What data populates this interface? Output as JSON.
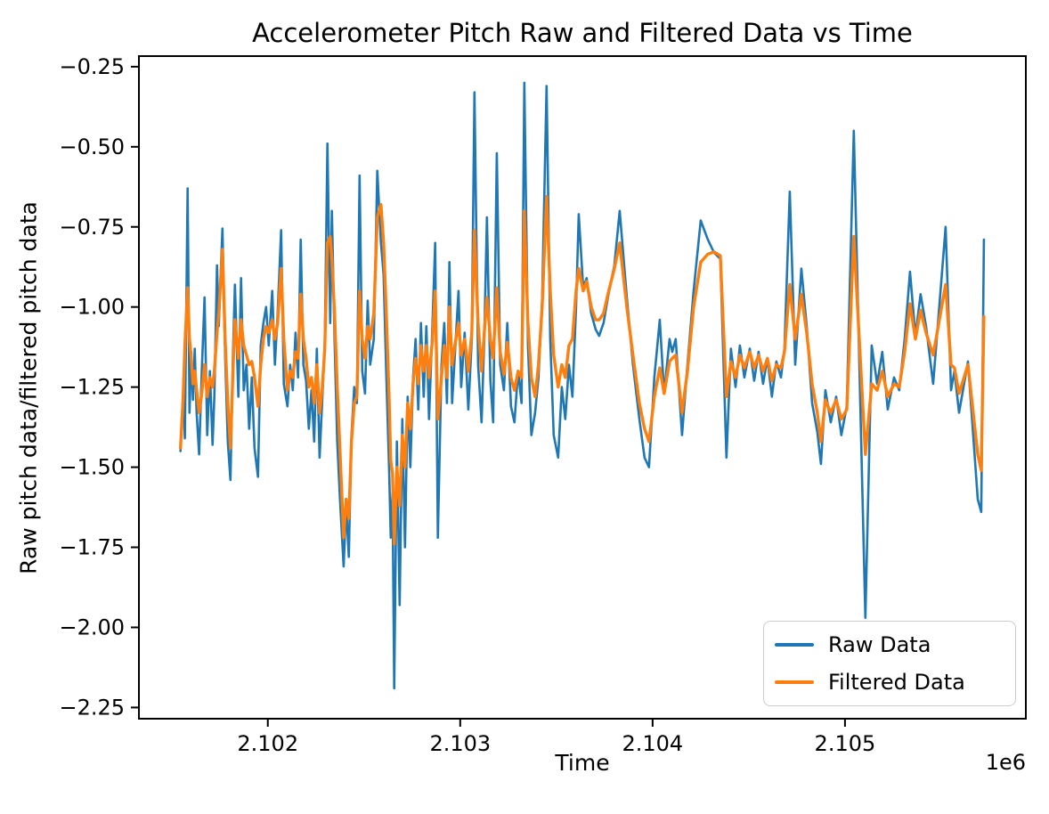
{
  "figure": {
    "background": "#ffffff",
    "text_color": "#000000",
    "spine_color": "#000000"
  },
  "chart_data": {
    "type": "line",
    "title": "Accelerometer Pitch Raw and Filtered Data vs Time",
    "xlabel": "Time",
    "ylabel": "Raw pitch data/filtered pitch data",
    "x_offset_label": "1e6",
    "grid": false,
    "xlim": [
      2101330,
      2105940
    ],
    "ylim": [
      -2.285,
      -0.217
    ],
    "x_ticks": {
      "values": [
        2102000,
        2103000,
        2104000,
        2105000
      ],
      "labels": [
        "2.102",
        "2.103",
        "2.104",
        "2.105"
      ]
    },
    "y_ticks": {
      "values": [
        -0.25,
        -0.5,
        -0.75,
        -1.0,
        -1.25,
        -1.5,
        -1.75,
        -2.0,
        -2.25
      ],
      "labels": [
        "−0.25",
        "−0.50",
        "−0.75",
        "−1.00",
        "−1.25",
        "−1.50",
        "−1.75",
        "−2.00",
        "−2.25"
      ]
    },
    "legend": {
      "position": "lower right",
      "entries": [
        {
          "label": "Raw Data",
          "color": "#1f77b4"
        },
        {
          "label": "Filtered Data",
          "color": "#ff7f0e"
        }
      ]
    },
    "x": [
      2101546,
      2101560,
      2101569,
      2101583,
      2101593,
      2101602,
      2101611,
      2101620,
      2101630,
      2101643,
      2101657,
      2101671,
      2101685,
      2101699,
      2101713,
      2101722,
      2101736,
      2101745,
      2101764,
      2101778,
      2101792,
      2101806,
      2101819,
      2101829,
      2101847,
      2101861,
      2101875,
      2101889,
      2101903,
      2101917,
      2101931,
      2101949,
      2101963,
      2101977,
      2101991,
      2102005,
      2102023,
      2102037,
      2102051,
      2102069,
      2102083,
      2102102,
      2102116,
      2102130,
      2102144,
      2102157,
      2102171,
      2102185,
      2102199,
      2102213,
      2102227,
      2102241,
      2102255,
      2102269,
      2102282,
      2102296,
      2102310,
      2102324,
      2102333,
      2102347,
      2102361,
      2102375,
      2102394,
      2102407,
      2102421,
      2102435,
      2102449,
      2102463,
      2102477,
      2102491,
      2102505,
      2102519,
      2102532,
      2102551,
      2102569,
      2102588,
      2102602,
      2102616,
      2102630,
      2102639,
      2102648,
      2102657,
      2102671,
      2102685,
      2102699,
      2102713,
      2102727,
      2102741,
      2102755,
      2102768,
      2102782,
      2102796,
      2102810,
      2102824,
      2102838,
      2102856,
      2102870,
      2102884,
      2102903,
      2102917,
      2102931,
      2102944,
      2102958,
      2102972,
      2102991,
      2103005,
      2103023,
      2103042,
      2103060,
      2103074,
      2103093,
      2103111,
      2103125,
      2103139,
      2103157,
      2103171,
      2103190,
      2103208,
      2103227,
      2103245,
      2103264,
      2103282,
      2103301,
      2103319,
      2103333,
      2103352,
      2103370,
      2103389,
      2103407,
      2103426,
      2103449,
      2103468,
      2103486,
      2103509,
      2103528,
      2103546,
      2103565,
      2103583,
      2103602,
      2103616,
      2103639,
      2103657,
      2103681,
      2103704,
      2103722,
      2103745,
      2103768,
      2103801,
      2103829,
      2103866,
      2103898,
      2103931,
      2103958,
      2103981,
      2104009,
      2104037,
      2104060,
      2104088,
      2104102,
      2104120,
      2104153,
      2104181,
      2104213,
      2104250,
      2104287,
      2104319,
      2104352,
      2104384,
      2104407,
      2104431,
      2104454,
      2104477,
      2104505,
      2104528,
      2104551,
      2104574,
      2104597,
      2104620,
      2104643,
      2104667,
      2104685,
      2104713,
      2104741,
      2104773,
      2104801,
      2104829,
      2104856,
      2104875,
      2104898,
      2104926,
      2104954,
      2104981,
      2105009,
      2105046,
      2105106,
      2105139,
      2105167,
      2105194,
      2105222,
      2105255,
      2105282,
      2105310,
      2105338,
      2105366,
      2105393,
      2105421,
      2105458,
      2105523,
      2105551,
      2105569,
      2105593,
      2105639,
      2105690,
      2105708,
      2105722
    ],
    "series": [
      {
        "name": "Raw Data",
        "color": "#1f77b4",
        "values": [
          -1.45,
          -1.27,
          -1.41,
          -0.63,
          -1.33,
          -1.14,
          -1.29,
          -1.13,
          -1.33,
          -1.46,
          -1.2,
          -0.97,
          -1.4,
          -1.2,
          -1.43,
          -1.28,
          -0.87,
          -1.06,
          -0.755,
          -1.15,
          -1.42,
          -1.54,
          -1.15,
          -0.93,
          -1.28,
          -0.91,
          -1.26,
          -1.18,
          -1.38,
          -1.22,
          -1.44,
          -1.53,
          -1.12,
          -1.05,
          -1.0,
          -1.12,
          -0.95,
          -1.18,
          -1.02,
          -0.76,
          -1.24,
          -1.31,
          -1.18,
          -1.26,
          -1.08,
          -1.22,
          -0.79,
          -1.18,
          -1.23,
          -1.38,
          -1.26,
          -1.42,
          -1.13,
          -1.47,
          -1.3,
          -1.12,
          -0.49,
          -1.05,
          -0.7,
          -1.1,
          -1.42,
          -1.6,
          -1.81,
          -1.62,
          -1.78,
          -1.4,
          -1.25,
          -1.3,
          -0.59,
          -1.2,
          -1.27,
          -0.98,
          -1.18,
          -1.1,
          -0.575,
          -0.8,
          -0.9,
          -1.21,
          -1.5,
          -1.72,
          -1.58,
          -2.19,
          -1.42,
          -1.93,
          -1.35,
          -1.75,
          -1.28,
          -1.5,
          -1.22,
          -1.1,
          -1.32,
          -1.05,
          -1.28,
          -1.06,
          -1.35,
          -1.05,
          -0.8,
          -1.72,
          -1.18,
          -1.05,
          -1.3,
          -0.86,
          -1.3,
          -1.15,
          -0.95,
          -1.25,
          -1.08,
          -1.32,
          -1.1,
          -0.33,
          -1.18,
          -1.36,
          -1.1,
          -0.72,
          -1.23,
          -1.36,
          -0.52,
          -1.18,
          -1.26,
          -1.05,
          -1.31,
          -1.36,
          -1.2,
          -1.3,
          -0.3,
          -1.12,
          -1.4,
          -1.33,
          -1.22,
          -0.98,
          -0.31,
          -1.1,
          -1.4,
          -1.47,
          -1.25,
          -1.35,
          -1.18,
          -1.28,
          -1.0,
          -0.71,
          -0.94,
          -0.91,
          -1.02,
          -1.07,
          -1.09,
          -1.05,
          -0.97,
          -0.87,
          -0.7,
          -0.97,
          -1.18,
          -1.35,
          -1.47,
          -1.5,
          -1.22,
          -1.04,
          -1.27,
          -1.1,
          -1.14,
          -1.1,
          -1.4,
          -1.18,
          -0.95,
          -0.73,
          -0.79,
          -0.83,
          -0.85,
          -1.47,
          -1.13,
          -1.25,
          -1.12,
          -1.22,
          -1.13,
          -1.23,
          -1.14,
          -1.24,
          -1.16,
          -1.28,
          -1.17,
          -1.22,
          -1.13,
          -0.64,
          -1.18,
          -0.88,
          -1.06,
          -1.3,
          -1.39,
          -1.49,
          -1.26,
          -1.36,
          -1.28,
          -1.4,
          -1.31,
          -0.45,
          -1.97,
          -1.12,
          -1.24,
          -1.14,
          -1.32,
          -1.22,
          -1.26,
          -1.1,
          -0.89,
          -1.09,
          -0.96,
          -1.06,
          -1.24,
          -0.75,
          -1.26,
          -1.2,
          -1.33,
          -1.17,
          -1.6,
          -1.64,
          -0.79
        ]
      },
      {
        "name": "Filtered Data",
        "color": "#ff7f0e",
        "values": [
          -1.44,
          -1.28,
          -1.12,
          -0.94,
          -1.1,
          -1.16,
          -1.24,
          -1.2,
          -1.26,
          -1.33,
          -1.27,
          -1.18,
          -1.28,
          -1.22,
          -1.25,
          -1.2,
          -1.08,
          -1.02,
          -0.82,
          -1.1,
          -1.3,
          -1.44,
          -1.2,
          -1.04,
          -1.16,
          -1.04,
          -1.12,
          -1.15,
          -1.18,
          -1.17,
          -1.22,
          -1.31,
          -1.18,
          -1.1,
          -1.06,
          -1.08,
          -1.04,
          -1.1,
          -1.05,
          -0.88,
          -1.1,
          -1.26,
          -1.2,
          -1.22,
          -1.14,
          -1.16,
          -0.96,
          -1.1,
          -1.16,
          -1.25,
          -1.22,
          -1.3,
          -1.18,
          -1.33,
          -1.26,
          -1.13,
          -0.8,
          -0.78,
          -0.85,
          -1.02,
          -1.25,
          -1.45,
          -1.72,
          -1.6,
          -1.66,
          -1.42,
          -1.3,
          -1.28,
          -0.95,
          -1.1,
          -1.16,
          -1.06,
          -1.1,
          -1.02,
          -0.72,
          -0.68,
          -0.8,
          -1.02,
          -1.28,
          -1.48,
          -1.52,
          -1.74,
          -1.5,
          -1.62,
          -1.4,
          -1.5,
          -1.3,
          -1.38,
          -1.24,
          -1.16,
          -1.24,
          -1.12,
          -1.2,
          -1.12,
          -1.22,
          -1.1,
          -0.95,
          -1.35,
          -1.22,
          -1.12,
          -1.22,
          -1.0,
          -1.18,
          -1.12,
          -1.05,
          -1.15,
          -1.1,
          -1.2,
          -1.08,
          -0.76,
          -1.05,
          -1.2,
          -1.08,
          -0.97,
          -1.1,
          -1.16,
          -0.94,
          -1.14,
          -1.21,
          -1.11,
          -1.22,
          -1.26,
          -1.2,
          -1.22,
          -0.7,
          -1.05,
          -1.22,
          -1.28,
          -1.18,
          -1.0,
          -0.655,
          -0.95,
          -1.15,
          -1.25,
          -1.18,
          -1.22,
          -1.12,
          -1.1,
          -0.95,
          -0.88,
          -0.95,
          -0.92,
          -1.0,
          -1.04,
          -1.04,
          -1.02,
          -0.96,
          -0.88,
          -0.8,
          -1.0,
          -1.15,
          -1.3,
          -1.38,
          -1.42,
          -1.28,
          -1.19,
          -1.27,
          -1.17,
          -1.16,
          -1.15,
          -1.33,
          -1.2,
          -1.0,
          -0.86,
          -0.835,
          -0.828,
          -0.84,
          -1.28,
          -1.17,
          -1.22,
          -1.15,
          -1.19,
          -1.14,
          -1.19,
          -1.15,
          -1.2,
          -1.16,
          -1.23,
          -1.18,
          -1.19,
          -1.14,
          -0.93,
          -1.1,
          -0.96,
          -1.08,
          -1.24,
          -1.33,
          -1.42,
          -1.29,
          -1.33,
          -1.29,
          -1.35,
          -1.32,
          -0.78,
          -1.46,
          -1.24,
          -1.26,
          -1.2,
          -1.28,
          -1.24,
          -1.25,
          -1.14,
          -0.99,
          -1.1,
          -1.01,
          -1.08,
          -1.15,
          -0.93,
          -1.18,
          -1.19,
          -1.27,
          -1.18,
          -1.46,
          -1.51,
          -1.03
        ]
      }
    ]
  }
}
